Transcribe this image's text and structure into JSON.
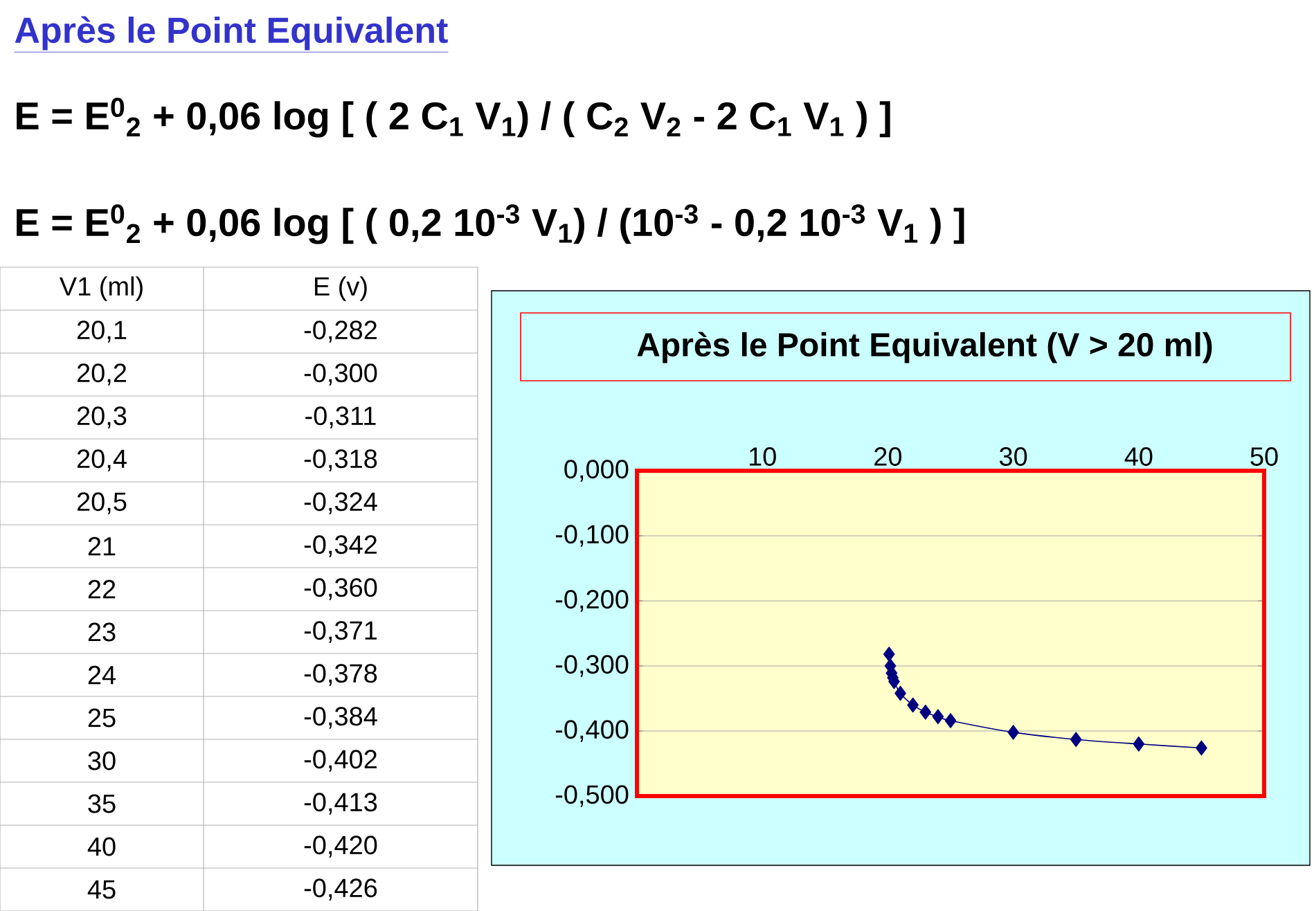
{
  "chart_data": [
    {
      "type": "other",
      "annotations": [
        "Après le Point Equivalent",
        "E = E$^{0}$$_{2}$ +  0,06 log [ ( 2 C$_{1}$ V$_{1}$) / ( C$_{2}$ V$_{2}$ - 2 C$_{1}$  V$_{1}$ ) ]",
        "E = E$^{0}$$_{2}$ +  0,06 log [ ( 0,2 10$^{-3}$ V$_{1}$) / (10$^{-3}$ - 0,2 10$^{-3}$  V$_{1}$ ) ]",
        "V1 (ml)",
        "E (v)",
        "20,1",
        "-0,282",
        "20,2",
        "-0,300",
        "20,3",
        "-0,311",
        "20,4",
        "-0,318",
        "20,5",
        "-0,324",
        "21",
        "-0,342",
        "22",
        "-0,360",
        "23",
        "-0,371",
        "24",
        "-0,378",
        "25",
        "-0,384",
        "30",
        "-0,402",
        "35",
        "-0,413",
        "40",
        "-0,420",
        "45",
        "-0,426"
      ]
    },
    {
      "type": "line",
      "title": "Après le Point Equivalent (V > 20 ml)",
      "x": [
        20.1,
        20.2,
        20.3,
        20.4,
        20.5,
        21,
        22,
        23,
        24,
        25,
        30,
        35,
        40,
        45
      ],
      "series": [
        {
          "color": "#000080",
          "values": [
            -0.282,
            -0.3,
            -0.311,
            -0.318,
            -0.324,
            -0.342,
            -0.36,
            -0.371,
            -0.378,
            -0.384,
            -0.402,
            -0.413,
            -0.42,
            -0.426
          ]
        }
      ],
      "marker": "diamond",
      "line_style": "solid",
      "grid": "y",
      "xlim": [
        0,
        50
      ],
      "xticks": [
        10,
        20,
        30,
        40,
        50
      ],
      "ylim": [
        -0.5,
        0
      ],
      "yticks": [
        {
          "value": 0,
          "label": "0,000"
        },
        {
          "value": -0.1,
          "label": "-0,100"
        },
        {
          "value": -0.2,
          "label": "-0,200"
        },
        {
          "value": -0.3,
          "label": "-0,300"
        },
        {
          "value": -0.4,
          "label": "-0,400"
        },
        {
          "value": -0.5,
          "label": "-0,500"
        }
      ]
    }
  ]
}
